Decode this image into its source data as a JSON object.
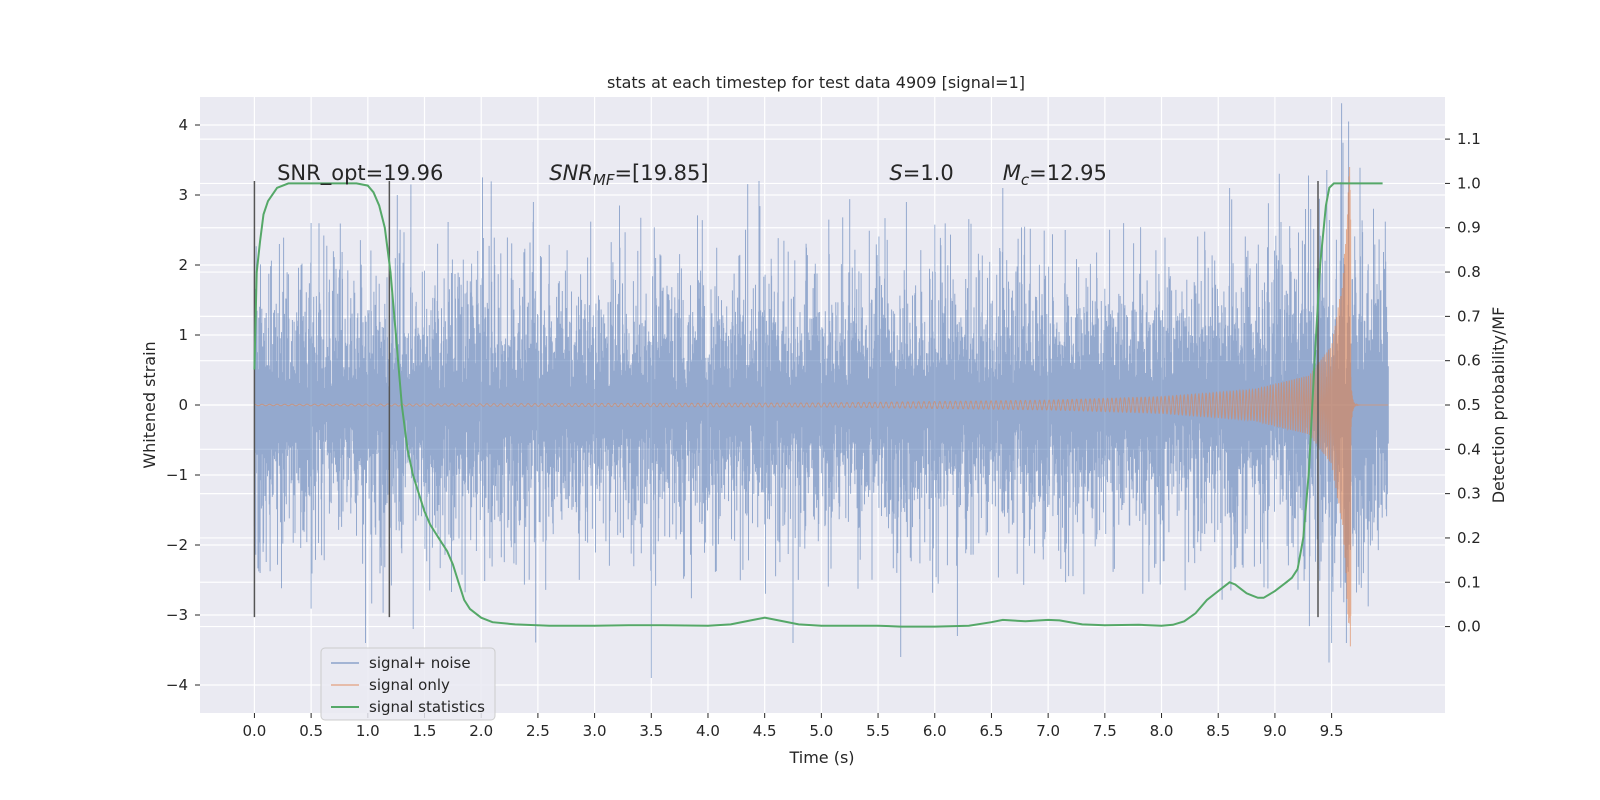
{
  "chart_data": {
    "type": "line",
    "title": "stats at each timestep for test data 4909 [signal=1]",
    "xlabel": "Time (s)",
    "ylabel": "Whitened strain",
    "y2label": "Detection probability/MF",
    "xlim": [
      -0.48,
      10.5
    ],
    "ylim": [
      -4.4,
      4.4
    ],
    "y2lim": [
      -0.195,
      1.195
    ],
    "x_ticks": [
      0.0,
      0.5,
      1.0,
      1.5,
      2.0,
      2.5,
      3.0,
      3.5,
      4.0,
      4.5,
      5.0,
      5.5,
      6.0,
      6.5,
      7.0,
      7.5,
      8.0,
      8.5,
      9.0,
      9.5
    ],
    "y_ticks": [
      -4,
      -3,
      -2,
      -1,
      0,
      1,
      2,
      3,
      4
    ],
    "y2_ticks": [
      0.0,
      0.1,
      0.2,
      0.3,
      0.4,
      0.5,
      0.6,
      0.7,
      0.8,
      0.9,
      1.0,
      1.1
    ],
    "grid": true,
    "legend_position": "lower-left",
    "annotations": [
      {
        "id": "snr-opt",
        "text": "SNR_opt=19.96",
        "italic": false,
        "x": 0.2,
        "y": 3.2
      },
      {
        "id": "snr-mf",
        "text": "SNR_MF=[19.85]",
        "italic": true,
        "x": 2.6,
        "y": 3.2
      },
      {
        "id": "s-value",
        "text": "S=1.0",
        "italic": true,
        "x": 5.6,
        "y": 3.2
      },
      {
        "id": "chirp-mass",
        "text": "M_c=12.95",
        "italic": true,
        "x": 6.6,
        "y": 3.2
      }
    ],
    "vertical_markers": [
      {
        "x": 0.0,
        "y_from": -3.03,
        "y_to": 3.2
      },
      {
        "x": 1.19,
        "y_from": -3.03,
        "y_to": 3.2
      },
      {
        "x": 9.38,
        "y_from": -3.03,
        "y_to": 3.2
      }
    ],
    "series": [
      {
        "name": "signal+ noise",
        "color": "#4c72b0",
        "kind": "noisy_strain",
        "x_range": [
          0.0,
          10.0
        ],
        "envelope": {
          "x": [
            0,
            7.0,
            8.5,
            9.3,
            9.55,
            9.65,
            10.0
          ],
          "sigma": [
            0.86,
            0.87,
            0.9,
            1.05,
            1.3,
            1.3,
            0.9
          ]
        },
        "peaks": [
          {
            "x": 0.22,
            "y": 2.3
          },
          {
            "x": 0.5,
            "y": 2.6
          },
          {
            "x": 1.26,
            "y": 3.0
          },
          {
            "x": 1.38,
            "y": 3.15
          },
          {
            "x": 2.46,
            "y": 2.9
          },
          {
            "x": 3.22,
            "y": 2.85
          },
          {
            "x": 4.45,
            "y": 3.2
          },
          {
            "x": 5.75,
            "y": 2.9
          },
          {
            "x": 6.6,
            "y": 3.1
          },
          {
            "x": 8.6,
            "y": 3.1
          },
          {
            "x": 9.27,
            "y": 2.8
          },
          {
            "x": 9.65,
            "y": 4.05
          },
          {
            "x": 0.05,
            "y": -2.4
          },
          {
            "x": 0.98,
            "y": -3.4
          },
          {
            "x": 1.4,
            "y": -3.2
          },
          {
            "x": 3.5,
            "y": -3.9
          },
          {
            "x": 4.75,
            "y": -3.4
          },
          {
            "x": 5.7,
            "y": -3.6
          },
          {
            "x": 6.2,
            "y": -3.3
          },
          {
            "x": 9.5,
            "y": -3.4
          },
          {
            "x": 9.63,
            "y": -3.4
          }
        ]
      },
      {
        "name": "signal only",
        "color": "#dd8452",
        "kind": "chirp",
        "t_merger": 9.67,
        "amplitude_points": {
          "x": [
            0,
            5.0,
            7.0,
            8.0,
            8.8,
            9.3,
            9.5,
            9.6,
            9.66,
            9.67
          ],
          "amp": [
            0.01,
            0.03,
            0.07,
            0.12,
            0.22,
            0.42,
            0.85,
            1.8,
            3.45,
            3.45
          ]
        },
        "ringdown_amp": 0.4
      },
      {
        "name": "signal statistics",
        "color": "#55a868",
        "axis": "right",
        "x": [
          0.0,
          0.02,
          0.05,
          0.08,
          0.12,
          0.2,
          0.3,
          0.5,
          0.7,
          0.9,
          1.0,
          1.05,
          1.1,
          1.15,
          1.2,
          1.25,
          1.3,
          1.35,
          1.4,
          1.45,
          1.5,
          1.55,
          1.6,
          1.65,
          1.7,
          1.75,
          1.8,
          1.85,
          1.9,
          1.95,
          2.0,
          2.1,
          2.3,
          2.6,
          3.0,
          3.3,
          3.6,
          4.0,
          4.2,
          4.4,
          4.5,
          4.6,
          4.8,
          5.0,
          5.5,
          5.7,
          6.0,
          6.3,
          6.5,
          6.6,
          6.8,
          7.0,
          7.1,
          7.3,
          7.5,
          7.8,
          8.0,
          8.1,
          8.2,
          8.3,
          8.4,
          8.5,
          8.55,
          8.6,
          8.65,
          8.7,
          8.75,
          8.8,
          8.85,
          8.9,
          9.0,
          9.1,
          9.15,
          9.2,
          9.25,
          9.3,
          9.35,
          9.4,
          9.45,
          9.48,
          9.52,
          9.58,
          9.7,
          9.8,
          9.9,
          9.95
        ],
        "values": [
          0.58,
          0.8,
          0.87,
          0.93,
          0.96,
          0.99,
          1.0,
          1.0,
          1.0,
          1.0,
          0.995,
          0.98,
          0.95,
          0.9,
          0.8,
          0.65,
          0.5,
          0.4,
          0.34,
          0.3,
          0.26,
          0.23,
          0.21,
          0.19,
          0.17,
          0.14,
          0.1,
          0.06,
          0.04,
          0.03,
          0.02,
          0.01,
          0.005,
          0.002,
          0.002,
          0.003,
          0.003,
          0.002,
          0.005,
          0.015,
          0.02,
          0.015,
          0.005,
          0.002,
          0.002,
          0.0,
          0.0,
          0.002,
          0.01,
          0.015,
          0.012,
          0.015,
          0.014,
          0.005,
          0.003,
          0.004,
          0.002,
          0.004,
          0.012,
          0.03,
          0.06,
          0.08,
          0.09,
          0.1,
          0.095,
          0.085,
          0.075,
          0.07,
          0.065,
          0.065,
          0.08,
          0.1,
          0.11,
          0.13,
          0.2,
          0.35,
          0.6,
          0.82,
          0.95,
          0.99,
          1.0,
          1.0,
          1.0,
          1.0,
          1.0,
          1.0
        ]
      }
    ]
  }
}
